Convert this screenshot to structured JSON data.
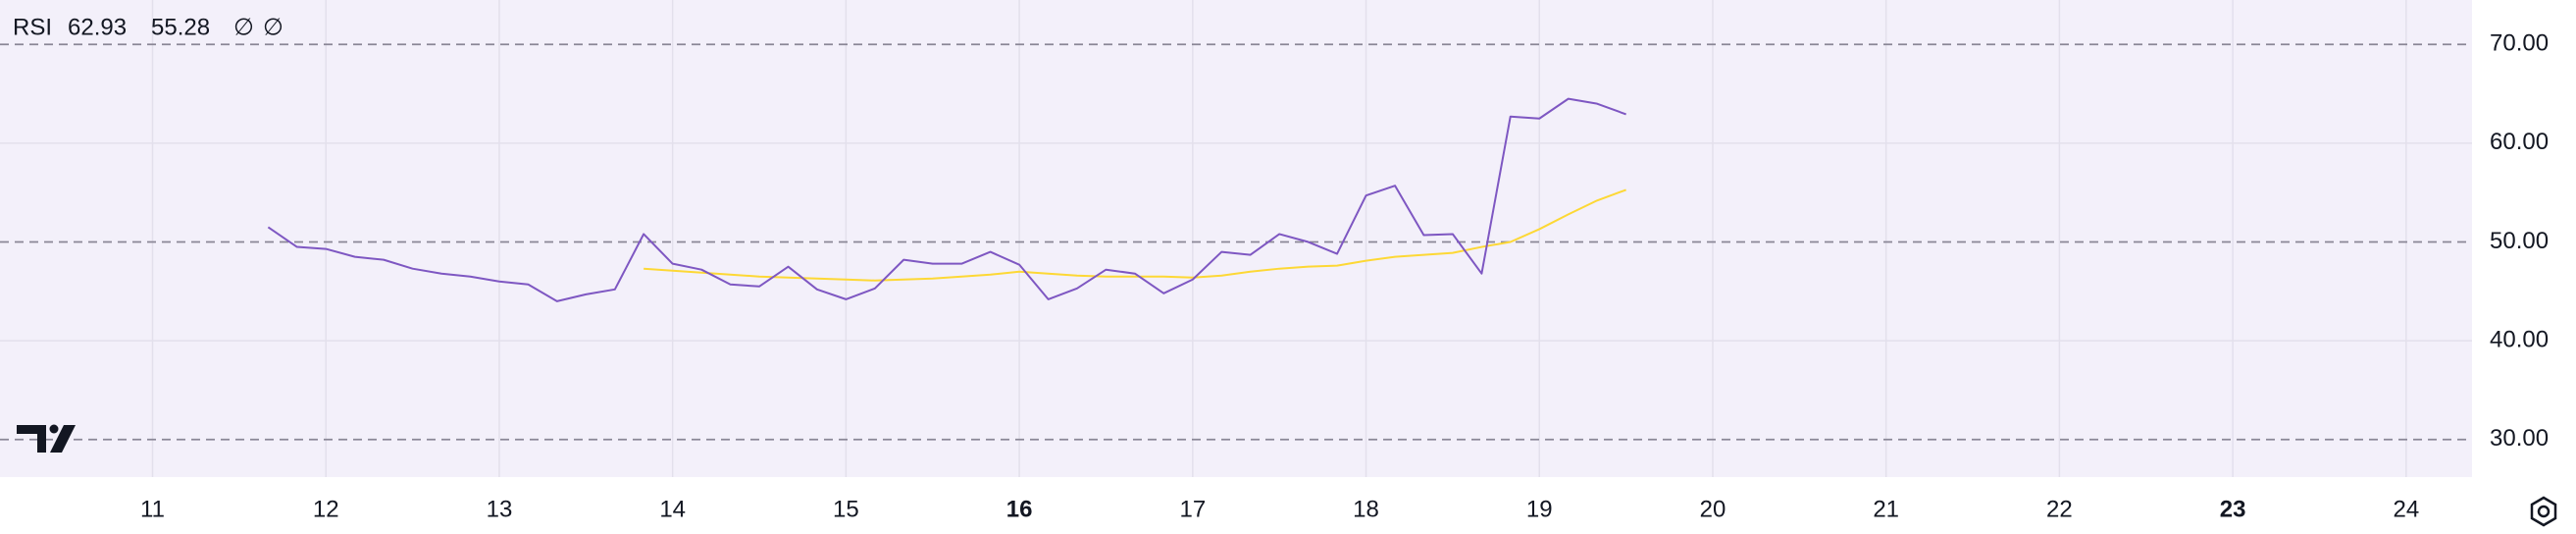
{
  "chart_data": {
    "type": "line",
    "title": "RSI",
    "legend_icons": [
      "∅",
      "∅"
    ],
    "x": [
      11.667,
      11.833,
      12,
      12.167,
      12.333,
      12.5,
      12.667,
      12.833,
      13,
      13.167,
      13.333,
      13.5,
      13.667,
      13.833,
      14,
      14.167,
      14.333,
      14.5,
      14.667,
      14.833,
      15,
      15.167,
      15.333,
      15.5,
      15.667,
      15.833,
      16,
      16.167,
      16.333,
      16.5,
      16.667,
      16.833,
      17,
      17.167,
      17.333,
      17.5,
      17.667,
      17.833,
      18,
      18.167,
      18.333,
      18.5,
      18.667,
      18.833,
      19,
      19.167,
      19.333,
      19.5
    ],
    "series": [
      {
        "color": "#7e57c2",
        "values": [
          51.5,
          49.5,
          49.3,
          48.5,
          48.2,
          47.3,
          46.8,
          46.5,
          46.0,
          45.7,
          44.0,
          44.7,
          45.2,
          50.8,
          47.8,
          47.2,
          45.7,
          45.5,
          47.5,
          45.2,
          44.2,
          45.3,
          48.2,
          47.8,
          47.8,
          49.0,
          47.7,
          44.2,
          45.3,
          47.2,
          46.8,
          44.8,
          46.2,
          49.0,
          48.7,
          50.8,
          50.0,
          48.8,
          54.7,
          55.7,
          50.7,
          50.8,
          46.8,
          62.7,
          62.5,
          64.5,
          64.0,
          62.93
        ]
      },
      {
        "color": "#fdd835",
        "values": [
          null,
          null,
          null,
          null,
          null,
          null,
          null,
          null,
          null,
          null,
          null,
          null,
          null,
          47.3,
          47.1,
          46.9,
          46.7,
          46.5,
          46.4,
          46.3,
          46.2,
          46.1,
          46.2,
          46.3,
          46.5,
          46.7,
          47.0,
          46.8,
          46.6,
          46.5,
          46.5,
          46.5,
          46.4,
          46.6,
          47.0,
          47.3,
          47.5,
          47.6,
          48.1,
          48.5,
          48.7,
          48.9,
          49.5,
          50.0,
          51.3,
          52.8,
          54.2,
          55.28
        ]
      }
    ],
    "xlim": [
      10.12,
      24.38
    ],
    "xticks": [
      11,
      12,
      13,
      14,
      15,
      16,
      17,
      18,
      19,
      20,
      21,
      22,
      23,
      24
    ],
    "ylim": [
      26.2,
      74.5
    ],
    "yticks": [
      {
        "value": 30,
        "label": "30.00"
      },
      {
        "value": 40,
        "label": "40.00"
      },
      {
        "value": 50,
        "label": "50.00"
      },
      {
        "value": 60,
        "label": "60.00"
      },
      {
        "value": 70,
        "label": "70.00"
      }
    ],
    "dashed_levels": [
      70,
      50,
      30
    ],
    "grid": true
  }
}
